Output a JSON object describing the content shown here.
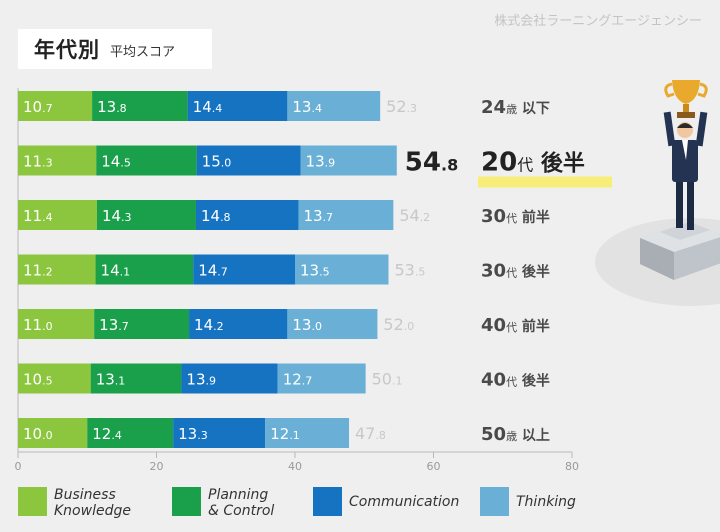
{
  "company": "株式会社ラーニングエージェンシー",
  "title": {
    "main": "年代別",
    "sub": "平均スコア"
  },
  "colors": {
    "business": "#8cc63f",
    "planning": "#1aa04a",
    "communication": "#1673c2",
    "thinking": "#6ab0d6",
    "total_grey": "#c8c8c8",
    "total_highlight": "#222222",
    "highlight_bar": "#f7ee7a"
  },
  "chart_data": {
    "type": "bar",
    "orientation": "horizontal",
    "stacked": true,
    "categories": [
      "24歳以下",
      "20代後半",
      "30代前半",
      "30代後半",
      "40代前半",
      "40代後半",
      "50歳以上"
    ],
    "category_labels": [
      {
        "num": "24",
        "unit": "歳",
        "rest": "以下"
      },
      {
        "num": "20",
        "unit": "代",
        "rest": "後半"
      },
      {
        "num": "30",
        "unit": "代",
        "rest": "前半"
      },
      {
        "num": "30",
        "unit": "代",
        "rest": "後半"
      },
      {
        "num": "40",
        "unit": "代",
        "rest": "前半"
      },
      {
        "num": "40",
        "unit": "代",
        "rest": "後半"
      },
      {
        "num": "50",
        "unit": "歳",
        "rest": "以上"
      }
    ],
    "series": [
      {
        "name": "Business Knowledge",
        "key": "business",
        "values": [
          10.7,
          11.3,
          11.4,
          11.2,
          11.0,
          10.5,
          10.0
        ]
      },
      {
        "name": "Planning & Control",
        "key": "planning",
        "values": [
          13.8,
          14.5,
          14.3,
          14.1,
          13.7,
          13.1,
          12.4
        ]
      },
      {
        "name": "Communication",
        "key": "communication",
        "values": [
          14.4,
          15.0,
          14.8,
          14.7,
          14.2,
          13.9,
          13.3
        ]
      },
      {
        "name": "Thinking",
        "key": "thinking",
        "values": [
          13.4,
          13.9,
          13.7,
          13.5,
          13.0,
          12.7,
          12.1
        ]
      }
    ],
    "totals": [
      52.3,
      54.8,
      54.2,
      53.5,
      52.0,
      50.1,
      47.8
    ],
    "highlight_index": 1,
    "xlim": [
      0,
      80
    ],
    "xticks": [
      0,
      20,
      40,
      60,
      80
    ],
    "grid": false
  },
  "legend": [
    {
      "key": "business",
      "label": "Business\nKnowledge"
    },
    {
      "key": "planning",
      "label": "Planning\n& Control"
    },
    {
      "key": "communication",
      "label": "Communication"
    },
    {
      "key": "thinking",
      "label": "Thinking"
    }
  ],
  "illustration": {
    "name": "trophy-winner-illustration"
  }
}
